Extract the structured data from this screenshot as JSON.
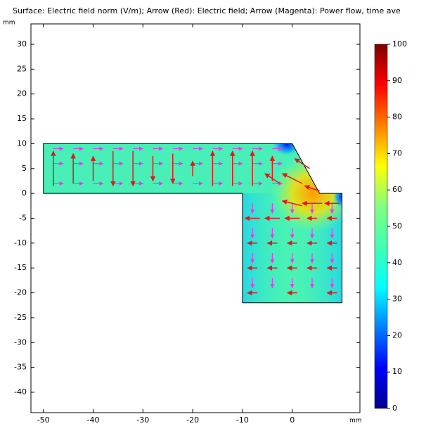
{
  "chart_data": {
    "type": "field",
    "title": "Surface: Electric field norm (V/m); Arrow (Red): Electric field; Arrow (Magenta): Power flow, time ave",
    "x_unit": "mm",
    "y_unit": "mm",
    "xlim": [
      -52.5,
      13.6
    ],
    "ylim": [
      -44.1,
      34.1
    ],
    "xticks": [
      -50,
      -40,
      -30,
      -20,
      -10,
      0
    ],
    "yticks": [
      -40,
      -35,
      -30,
      -25,
      -20,
      -15,
      -10,
      -5,
      0,
      5,
      10,
      15,
      20,
      25,
      30
    ],
    "domain": {
      "x": [
        -50,
        0,
        5.5,
        10,
        10,
        -10,
        -10,
        -50
      ],
      "y": [
        10,
        10,
        0,
        0,
        -22,
        -22,
        0,
        0
      ]
    },
    "colorbar": {
      "clim": [
        0,
        100
      ],
      "ticks": [
        0,
        10,
        20,
        30,
        40,
        50,
        60,
        70,
        80,
        90,
        100
      ],
      "colormap": [
        "#00008f",
        "#0000ff",
        "#0080ff",
        "#00ffff",
        "#40ffb0",
        "#80ff80",
        "#ffff00",
        "#ff8000",
        "#ff0000",
        "#800000"
      ]
    },
    "e_field_color": "#e8141e",
    "e_field": {
      "x": [
        -48,
        -44,
        -40,
        -36,
        -32,
        -28,
        -24,
        -20,
        -16,
        -12,
        -8,
        -4,
        -4,
        0,
        2,
        4,
        0,
        4,
        8,
        -8,
        -4,
        0,
        4,
        8,
        -8,
        -4,
        0,
        4,
        8,
        -8,
        -4,
        0,
        4,
        8,
        -8,
        0,
        8
      ],
      "y": [
        5,
        5,
        5,
        5,
        5,
        5,
        5,
        5,
        5,
        5,
        5,
        5,
        3,
        3,
        6,
        1,
        -2,
        -2,
        -2,
        -5,
        -5,
        -5,
        -5,
        -5,
        -10,
        -10,
        -10,
        -10,
        -10,
        -15,
        -15,
        -15,
        -15,
        -15,
        -20,
        -20,
        -20
      ],
      "u": [
        0,
        0,
        0,
        0,
        0,
        0,
        0,
        0,
        0,
        0,
        0,
        0,
        -3,
        -4,
        -3,
        -3,
        -4,
        -4,
        -3,
        -3,
        -3,
        -3,
        -2,
        -2,
        -2,
        -2,
        -2,
        -2,
        -2,
        -2,
        -2,
        -2,
        -2,
        -2,
        -2,
        -2,
        -2
      ],
      "v": [
        7,
        6,
        5,
        -7,
        -7,
        -5,
        -6,
        3,
        7,
        7,
        7,
        5,
        2,
        2,
        2,
        1,
        1,
        0,
        0,
        0,
        0,
        0,
        0,
        0,
        0,
        0,
        0,
        0,
        0,
        0,
        0,
        0,
        0,
        0,
        0,
        0,
        0
      ]
    },
    "power_color": "#e040e8",
    "power_flow": {
      "x": [
        -47,
        -43,
        -39,
        -35,
        -31,
        -27,
        -23,
        -19,
        -15,
        -11,
        -7,
        -3,
        -47,
        -43,
        -39,
        -35,
        -31,
        -27,
        -23,
        -19,
        -15,
        -11,
        -7,
        -3,
        -47,
        -43,
        -39,
        -35,
        -31,
        -27,
        -23,
        -19,
        -15,
        -11,
        -7,
        -3,
        -8,
        -4,
        0,
        4,
        8,
        -8,
        -4,
        0,
        4,
        8,
        -8,
        -4,
        0,
        4,
        8,
        -8,
        -4,
        0,
        4,
        8
      ],
      "y": [
        2,
        2,
        2,
        2,
        2,
        2,
        2,
        2,
        2,
        2,
        2,
        2,
        6,
        6,
        6,
        6,
        6,
        6,
        6,
        6,
        6,
        6,
        6,
        6,
        9,
        9,
        9,
        9,
        9,
        9,
        9,
        9,
        9,
        9,
        9,
        9,
        -3,
        -3,
        -3,
        -3,
        -3,
        -8,
        -8,
        -8,
        -8,
        -8,
        -13,
        -13,
        -13,
        -13,
        -13,
        -18,
        -18,
        -18,
        -18,
        -18
      ],
      "u": [
        2,
        2,
        2,
        2,
        2,
        2,
        2,
        2,
        2,
        2,
        2,
        2,
        2,
        2,
        2,
        2,
        2,
        2,
        2,
        2,
        2,
        2,
        2,
        2,
        2,
        2,
        2,
        2,
        2,
        2,
        2,
        2,
        2,
        2,
        2,
        2,
        0,
        0,
        0,
        0,
        0,
        0,
        0,
        0,
        0,
        0,
        0,
        0,
        0,
        0,
        0,
        0,
        0,
        0,
        0,
        0
      ],
      "v": [
        0,
        0,
        0,
        0,
        0,
        0,
        0,
        0,
        0,
        0,
        0,
        0,
        0,
        0,
        0,
        0,
        0,
        0,
        0,
        0,
        0,
        0,
        0,
        0,
        0,
        0,
        0,
        0,
        0,
        0,
        0,
        0,
        0,
        0,
        0,
        0,
        -2,
        -2,
        -2,
        -2,
        -2,
        -2,
        -2,
        -2,
        -2,
        -2,
        -2,
        -2,
        -2,
        -2,
        -2,
        -2,
        -2,
        -2,
        -2,
        -2
      ]
    }
  }
}
